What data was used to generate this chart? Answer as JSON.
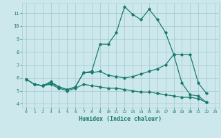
{
  "xlabel": "Humidex (Indice chaleur)",
  "background_color": "#cce8ec",
  "grid_color": "#aacdd4",
  "line_color": "#1a7a6e",
  "xlim": [
    -0.5,
    23.5
  ],
  "ylim": [
    3.7,
    11.8
  ],
  "yticks": [
    4,
    5,
    6,
    7,
    8,
    9,
    10,
    11
  ],
  "xticks": [
    0,
    1,
    2,
    3,
    4,
    5,
    6,
    7,
    8,
    9,
    10,
    11,
    12,
    13,
    14,
    15,
    16,
    17,
    18,
    19,
    20,
    21,
    22,
    23
  ],
  "series": [
    {
      "x": [
        0,
        1,
        2,
        3,
        4,
        5,
        6,
        7,
        8,
        9,
        10,
        11,
        12,
        13,
        14,
        15,
        16,
        17,
        18,
        19,
        20,
        21,
        22
      ],
      "y": [
        5.9,
        5.5,
        5.4,
        5.7,
        5.3,
        5.1,
        5.3,
        6.4,
        6.5,
        8.6,
        8.6,
        9.5,
        11.5,
        10.9,
        10.5,
        11.3,
        10.5,
        9.5,
        7.8,
        5.6,
        4.7,
        4.6,
        4.1
      ]
    },
    {
      "x": [
        0,
        1,
        2,
        3,
        4,
        5,
        6,
        7,
        8,
        9,
        10,
        11,
        12,
        13,
        14,
        15,
        16,
        17,
        18,
        19,
        20,
        21,
        22
      ],
      "y": [
        5.9,
        5.5,
        5.4,
        5.6,
        5.3,
        5.1,
        5.3,
        6.4,
        6.4,
        6.5,
        6.2,
        6.1,
        6.0,
        6.1,
        6.3,
        6.5,
        6.7,
        7.0,
        7.8,
        7.8,
        7.8,
        5.6,
        4.8
      ]
    },
    {
      "x": [
        0,
        1,
        2,
        3,
        4,
        5,
        6,
        7,
        8,
        9,
        10,
        11,
        12,
        13,
        14,
        15,
        16,
        17,
        18,
        19,
        20,
        21,
        22
      ],
      "y": [
        5.9,
        5.5,
        5.4,
        5.5,
        5.2,
        5.0,
        5.2,
        5.5,
        5.4,
        5.3,
        5.2,
        5.2,
        5.1,
        5.0,
        4.9,
        4.9,
        4.8,
        4.7,
        4.6,
        4.5,
        4.5,
        4.4,
        4.1
      ]
    }
  ]
}
